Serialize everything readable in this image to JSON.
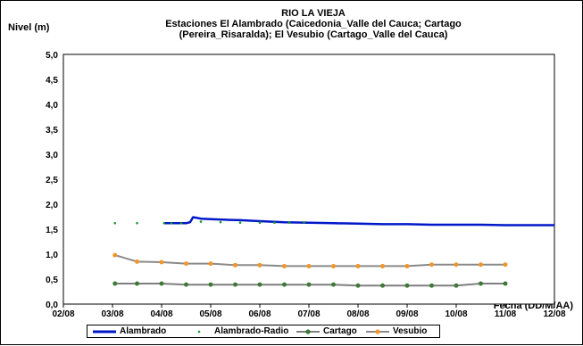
{
  "chart_data": {
    "type": "line",
    "title": "RIO LA VIEJA",
    "subtitle_lines": [
      "Estaciones El Alambrado (Caicedonia_Valle del Cauca; Cartago",
      "(Pereira_Risaralda);  El Vesubio (Cartago_Valle del Cauca)"
    ],
    "ylabel": "Nivel (m)",
    "xlabel": "Fecha (DD/M/AA)",
    "x_ticks": [
      "02/08",
      "03/08",
      "04/08",
      "05/08",
      "06/08",
      "07/08",
      "08/08",
      "09/08",
      "10/08",
      "11/08",
      "12/08"
    ],
    "y_ticks": [
      "0,0",
      "0,5",
      "1,0",
      "1,5",
      "2,0",
      "2,5",
      "3,0",
      "3,5",
      "4,0",
      "4,5",
      "5,0"
    ],
    "ylim": [
      0,
      5
    ],
    "xlim": [
      0,
      10
    ],
    "x_unit": "months since 02/08",
    "grid": true,
    "legend_position": "bottom",
    "series": [
      {
        "name": "Alambrado",
        "color": "#0018c8",
        "style": "line",
        "x": [
          2.05,
          2.3,
          2.5,
          2.58,
          2.64,
          2.7,
          2.8,
          3.0,
          3.3,
          3.6,
          4.0,
          4.5,
          5.0,
          5.5,
          6.0,
          6.5,
          7.0,
          7.5,
          8.0,
          8.5,
          9.0,
          9.5,
          10.0
        ],
        "y": [
          1.62,
          1.62,
          1.62,
          1.64,
          1.74,
          1.73,
          1.71,
          1.7,
          1.69,
          1.68,
          1.66,
          1.64,
          1.63,
          1.62,
          1.61,
          1.6,
          1.6,
          1.59,
          1.59,
          1.59,
          1.58,
          1.58,
          1.58
        ]
      },
      {
        "name": "Alambrado-Radio",
        "color": "#1a9a2e",
        "style": "dots",
        "x": [
          1.05,
          1.5,
          2.05,
          2.2,
          2.4,
          2.8,
          3.2,
          3.6,
          4.0,
          4.3,
          4.6,
          4.9
        ],
        "y": [
          1.62,
          1.62,
          1.62,
          1.62,
          1.62,
          1.65,
          1.64,
          1.63,
          1.63,
          1.63,
          1.63,
          1.64
        ]
      },
      {
        "name": "Cartago",
        "color": "#3d7a35",
        "style": "line-markers",
        "x": [
          1.05,
          1.5,
          2.0,
          2.5,
          3.0,
          3.5,
          4.0,
          4.5,
          5.0,
          5.5,
          6.0,
          6.5,
          7.0,
          7.5,
          8.0,
          8.5,
          9.0
        ],
        "y": [
          0.41,
          0.41,
          0.41,
          0.39,
          0.39,
          0.39,
          0.39,
          0.39,
          0.39,
          0.39,
          0.37,
          0.37,
          0.37,
          0.37,
          0.37,
          0.41,
          0.41
        ]
      },
      {
        "name": "Vesubio",
        "color": "#f0962a",
        "style": "line-markers",
        "x": [
          1.05,
          1.5,
          2.0,
          2.5,
          3.0,
          3.5,
          4.0,
          4.5,
          5.0,
          5.5,
          6.0,
          6.5,
          7.0,
          7.5,
          8.0,
          8.5,
          9.0
        ],
        "y": [
          0.98,
          0.85,
          0.84,
          0.81,
          0.81,
          0.78,
          0.78,
          0.76,
          0.76,
          0.76,
          0.76,
          0.76,
          0.76,
          0.79,
          0.79,
          0.79,
          0.79
        ]
      }
    ],
    "colors": {
      "cartago_line": "#7f7f7f",
      "cartago_marker": "#3d7a35",
      "vesubio_line": "#8a8a8a",
      "vesubio_marker": "#f0962a",
      "plot_background": "#ffffff",
      "grid": "#8c8c8c"
    }
  },
  "legend": {
    "items": [
      {
        "label": "Alambrado"
      },
      {
        "label": "Alambrado-Radio"
      },
      {
        "label": "Cartago"
      },
      {
        "label": "Vesubio"
      }
    ]
  }
}
